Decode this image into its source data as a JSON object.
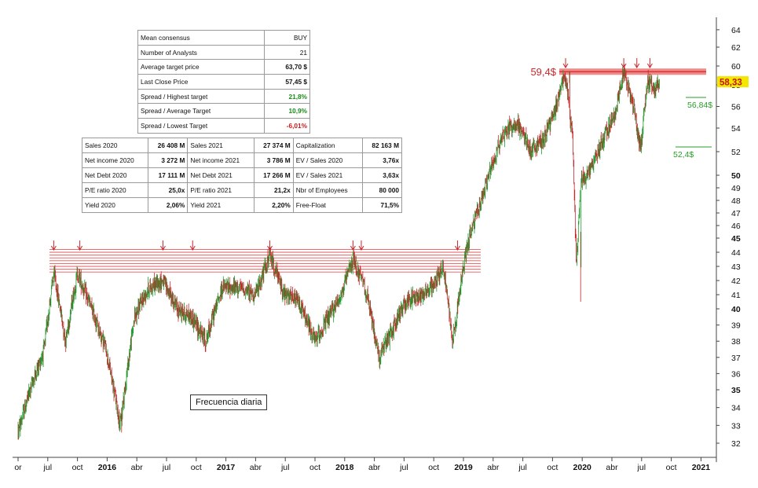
{
  "consensus_table": [
    {
      "label": "Mean consensus",
      "value": "BUY",
      "bold": false,
      "tone": ""
    },
    {
      "label": "Number of Analysts",
      "value": "21",
      "bold": false,
      "tone": ""
    },
    {
      "label": "Average target price",
      "value": "63,70 $",
      "bold": true,
      "tone": ""
    },
    {
      "label": "Last Close Price",
      "value": "57,45 $",
      "bold": true,
      "tone": ""
    },
    {
      "label": "Spread / Highest target",
      "value": "21,8%",
      "bold": true,
      "tone": "pos"
    },
    {
      "label": "Spread / Average Target",
      "value": "10,9%",
      "bold": true,
      "tone": "pos"
    },
    {
      "label": "Spread / Lowest Target",
      "value": "-6,01%",
      "bold": true,
      "tone": "neg"
    }
  ],
  "fundamentals_table": [
    [
      "Sales 2020",
      "26 408 M",
      "Sales 2021",
      "27 374 M",
      "Capitalization",
      "82 163 M"
    ],
    [
      "Net income 2020",
      "3 272 M",
      "Net income 2021",
      "3 786 M",
      "EV / Sales 2020",
      "3,76x"
    ],
    [
      "Net Debt 2020",
      "17 111 M",
      "Net Debt 2021",
      "17 266 M",
      "EV / Sales 2021",
      "3,63x"
    ],
    [
      "P/E ratio 2020",
      "25,0x",
      "P/E ratio 2021",
      "21,2x",
      "Nbr of Employees",
      "80 000"
    ],
    [
      "Yield 2020",
      "2,06%",
      "Yield 2021",
      "2,20%",
      "Free-Float",
      "71,5%"
    ]
  ],
  "frequency_label": "Frecuencia diaria",
  "chart_data": {
    "type": "candlestick",
    "title": "",
    "frequency": "daily",
    "y_axis": {
      "side": "right",
      "ticks": [
        32,
        33,
        34,
        35,
        36,
        37,
        38,
        39,
        40,
        41,
        42,
        43,
        44,
        45,
        46,
        47,
        48,
        49,
        50,
        52,
        54,
        56,
        58,
        60,
        62,
        64
      ],
      "bold_ticks": [
        35,
        40,
        45,
        50
      ],
      "range": [
        31.5,
        64.8
      ]
    },
    "x_axis": {
      "ticks": [
        {
          "label": "or",
          "t": 0.0,
          "bold": false
        },
        {
          "label": "jul",
          "t": 0.25,
          "bold": false
        },
        {
          "label": "oct",
          "t": 0.5,
          "bold": false
        },
        {
          "label": "2016",
          "t": 0.75,
          "bold": true
        },
        {
          "label": "abr",
          "t": 1.0,
          "bold": false
        },
        {
          "label": "jul",
          "t": 1.25,
          "bold": false
        },
        {
          "label": "oct",
          "t": 1.5,
          "bold": false
        },
        {
          "label": "2017",
          "t": 1.75,
          "bold": true
        },
        {
          "label": "abr",
          "t": 2.0,
          "bold": false
        },
        {
          "label": "jul",
          "t": 2.25,
          "bold": false
        },
        {
          "label": "oct",
          "t": 2.5,
          "bold": false
        },
        {
          "label": "2018",
          "t": 2.75,
          "bold": true
        },
        {
          "label": "abr",
          "t": 3.0,
          "bold": false
        },
        {
          "label": "jul",
          "t": 3.25,
          "bold": false
        },
        {
          "label": "oct",
          "t": 3.5,
          "bold": false
        },
        {
          "label": "2019",
          "t": 3.75,
          "bold": true
        },
        {
          "label": "abr",
          "t": 4.0,
          "bold": false
        },
        {
          "label": "jul",
          "t": 4.25,
          "bold": false
        },
        {
          "label": "oct",
          "t": 4.5,
          "bold": false
        },
        {
          "label": "2020",
          "t": 4.75,
          "bold": true
        },
        {
          "label": "abr",
          "t": 5.0,
          "bold": false
        },
        {
          "label": "jul",
          "t": 5.25,
          "bold": false
        },
        {
          "label": "oct",
          "t": 5.5,
          "bold": false
        },
        {
          "label": "2021",
          "t": 5.75,
          "bold": true
        }
      ]
    },
    "anchors": [
      [
        0.0,
        32.6
      ],
      [
        0.1,
        35.0
      ],
      [
        0.22,
        37.5
      ],
      [
        0.3,
        42.5
      ],
      [
        0.4,
        38.0
      ],
      [
        0.5,
        42.5
      ],
      [
        0.62,
        40.0
      ],
      [
        0.74,
        37.5
      ],
      [
        0.86,
        33.0
      ],
      [
        0.98,
        39.5
      ],
      [
        1.1,
        41.5
      ],
      [
        1.22,
        42.0
      ],
      [
        1.34,
        40.0
      ],
      [
        1.46,
        39.5
      ],
      [
        1.58,
        38.0
      ],
      [
        1.72,
        41.5
      ],
      [
        1.86,
        41.5
      ],
      [
        2.0,
        41.0
      ],
      [
        2.12,
        43.8
      ],
      [
        2.24,
        41.0
      ],
      [
        2.36,
        40.5
      ],
      [
        2.5,
        38.0
      ],
      [
        2.62,
        39.5
      ],
      [
        2.72,
        41.0
      ],
      [
        2.82,
        43.5
      ],
      [
        2.92,
        41.5
      ],
      [
        3.04,
        37.0
      ],
      [
        3.14,
        38.5
      ],
      [
        3.26,
        40.5
      ],
      [
        3.38,
        41.0
      ],
      [
        3.48,
        41.5
      ],
      [
        3.58,
        43.0
      ],
      [
        3.66,
        38.0
      ],
      [
        3.78,
        44.5
      ],
      [
        3.9,
        48.0
      ],
      [
        3.98,
        50.5
      ],
      [
        4.08,
        53.5
      ],
      [
        4.2,
        54.5
      ],
      [
        4.32,
        52.0
      ],
      [
        4.42,
        53.0
      ],
      [
        4.52,
        55.5
      ],
      [
        4.6,
        59.4
      ],
      [
        4.67,
        53.0
      ],
      [
        4.7,
        43.0
      ],
      [
        4.74,
        49.5
      ],
      [
        4.82,
        50.5
      ],
      [
        4.92,
        53.0
      ],
      [
        5.02,
        55.0
      ],
      [
        5.1,
        59.4
      ],
      [
        5.18,
        56.0
      ],
      [
        5.24,
        52.4
      ],
      [
        5.3,
        58.5
      ],
      [
        5.36,
        57.5
      ],
      [
        5.4,
        58.33
      ]
    ],
    "candles": [
      {
        "i": 0,
        "t": 0.0,
        "o": 32.4,
        "h": 33.2,
        "l": 32.2,
        "c": 32.8
      },
      {
        "i": 80,
        "t": 0.3,
        "o": 42.0,
        "h": 43.0,
        "l": 41.6,
        "c": 42.6
      },
      {
        "i": 230,
        "t": 0.86,
        "o": 33.5,
        "h": 34.0,
        "l": 32.6,
        "c": 33.0
      },
      {
        "i": 565,
        "t": 2.12,
        "o": 43.2,
        "h": 44.0,
        "l": 42.8,
        "c": 43.7
      },
      {
        "i": 1225,
        "t": 4.6,
        "o": 58.8,
        "h": 59.4,
        "l": 58.2,
        "c": 59.2
      },
      {
        "i": 1250,
        "t": 4.7,
        "o": 44.0,
        "h": 45.5,
        "l": 40.5,
        "c": 43.0
      },
      {
        "i": 1386,
        "t": 5.24,
        "o": 53.0,
        "h": 53.5,
        "l": 52.4,
        "c": 52.8
      },
      {
        "i": 1425,
        "t": 5.4,
        "o": 58.0,
        "h": 58.6,
        "l": 57.6,
        "c": 58.33
      }
    ],
    "resistance_2015_2019": {
      "lines": [
        42.6,
        42.8,
        43.0,
        43.2,
        43.4,
        43.6,
        43.8,
        44.0,
        44.2
      ]
    },
    "resistance_2020": {
      "value": 59.4,
      "label": "59,4$"
    },
    "levels": [
      {
        "value": 56.84,
        "label": "56,84$"
      },
      {
        "value": 52.4,
        "label": "52,4$"
      }
    ],
    "last_price": {
      "value": 58.33,
      "label": "58,33"
    },
    "arrows_t": [
      0.3,
      0.52,
      1.22,
      1.47,
      2.12,
      2.82,
      2.89,
      3.7,
      4.61,
      5.1,
      5.21,
      5.32
    ]
  }
}
